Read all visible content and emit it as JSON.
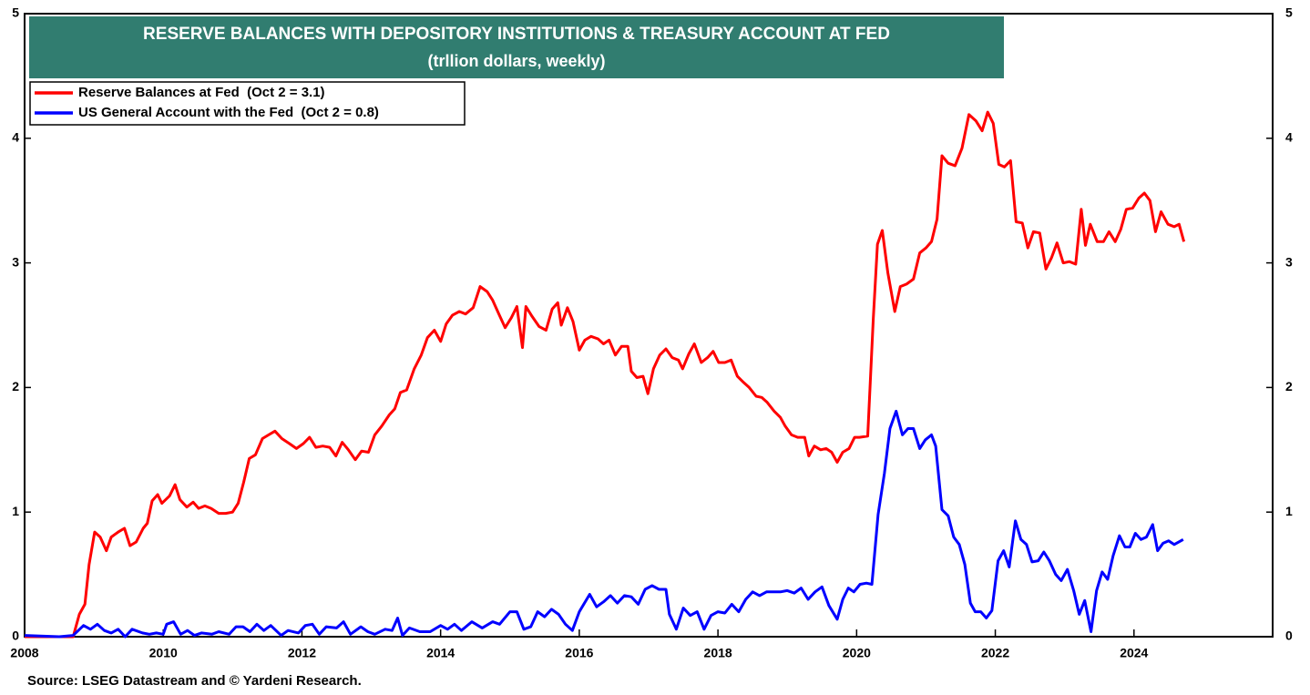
{
  "chart_data": {
    "type": "line",
    "title": "RESERVE BALANCES WITH DEPOSITORY INSTITUTIONS & TREASURY ACCOUNT AT FED",
    "subtitle": "(trllion dollars, weekly)",
    "source": "Source: LSEG Datastream and © Yardeni Research.",
    "xlim": [
      2008,
      2026
    ],
    "xticks": [
      2008,
      2010,
      2012,
      2014,
      2016,
      2018,
      2020,
      2022,
      2024
    ],
    "ylim": [
      0,
      5
    ],
    "yticks": [
      0,
      1,
      2,
      3,
      4,
      5
    ],
    "legend": "upper left",
    "series": [
      {
        "name": "Reserve Balances at Fed  (Oct 2 = 3.1)",
        "color": "#ff0000",
        "x": [
          2008.0,
          2008.7,
          2008.79,
          2008.87,
          2008.93,
          2009.01,
          2009.09,
          2009.18,
          2009.25,
          2009.35,
          2009.44,
          2009.52,
          2009.61,
          2009.71,
          2009.77,
          2009.84,
          2009.92,
          2009.98,
          2010.09,
          2010.17,
          2010.24,
          2010.34,
          2010.43,
          2010.51,
          2010.6,
          2010.69,
          2010.8,
          2010.9,
          2011.0,
          2011.08,
          2011.16,
          2011.24,
          2011.33,
          2011.43,
          2011.52,
          2011.61,
          2011.71,
          2011.82,
          2011.92,
          2012.02,
          2012.11,
          2012.2,
          2012.3,
          2012.4,
          2012.49,
          2012.58,
          2012.67,
          2012.77,
          2012.86,
          2012.96,
          2013.05,
          2013.15,
          2013.26,
          2013.34,
          2013.42,
          2013.51,
          2013.62,
          2013.72,
          2013.81,
          2013.91,
          2014.0,
          2014.08,
          2014.17,
          2014.27,
          2014.36,
          2014.47,
          2014.57,
          2014.67,
          2014.75,
          2014.84,
          2014.93,
          2015.02,
          2015.1,
          2015.18,
          2015.23,
          2015.32,
          2015.42,
          2015.52,
          2015.61,
          2015.69,
          2015.74,
          2015.83,
          2015.91,
          2016.0,
          2016.08,
          2016.17,
          2016.27,
          2016.35,
          2016.43,
          2016.52,
          2016.61,
          2016.7,
          2016.75,
          2016.83,
          2016.92,
          2016.99,
          2017.07,
          2017.16,
          2017.25,
          2017.34,
          2017.43,
          2017.49,
          2017.58,
          2017.66,
          2017.76,
          2017.85,
          2017.93,
          2018.01,
          2018.1,
          2018.19,
          2018.28,
          2018.37,
          2018.45,
          2018.55,
          2018.63,
          2018.71,
          2018.81,
          2018.9,
          2018.97,
          2019.06,
          2019.15,
          2019.25,
          2019.31,
          2019.39,
          2019.48,
          2019.56,
          2019.64,
          2019.72,
          2019.8,
          2019.89,
          2019.97,
          2020.04,
          2020.16,
          2020.24,
          2020.3,
          2020.37,
          2020.45,
          2020.55,
          2020.63,
          2020.72,
          2020.82,
          2020.91,
          2021.0,
          2021.08,
          2021.16,
          2021.23,
          2021.32,
          2021.42,
          2021.52,
          2021.62,
          2021.72,
          2021.81,
          2021.89,
          2021.97,
          2022.05,
          2022.13,
          2022.22,
          2022.3,
          2022.39,
          2022.47,
          2022.55,
          2022.64,
          2022.73,
          2022.81,
          2022.89,
          2022.98,
          2023.07,
          2023.16,
          2023.24,
          2023.3,
          2023.37,
          2023.47,
          2023.56,
          2023.64,
          2023.73,
          2023.81,
          2023.89,
          2023.98,
          2024.07,
          2024.15,
          2024.23,
          2024.31,
          2024.39,
          2024.49,
          2024.58,
          2024.65,
          2024.72
        ],
        "values": [
          0,
          0,
          0.18,
          0.26,
          0.58,
          0.84,
          0.8,
          0.69,
          0.8,
          0.84,
          0.87,
          0.73,
          0.76,
          0.87,
          0.91,
          1.09,
          1.14,
          1.07,
          1.13,
          1.22,
          1.1,
          1.04,
          1.08,
          1.03,
          1.05,
          1.03,
          0.99,
          0.99,
          1,
          1.07,
          1.24,
          1.43,
          1.46,
          1.59,
          1.62,
          1.65,
          1.59,
          1.55,
          1.51,
          1.55,
          1.6,
          1.52,
          1.53,
          1.52,
          1.45,
          1.56,
          1.5,
          1.42,
          1.49,
          1.48,
          1.62,
          1.69,
          1.78,
          1.83,
          1.96,
          1.98,
          2.15,
          2.26,
          2.4,
          2.46,
          2.37,
          2.51,
          2.58,
          2.61,
          2.59,
          2.64,
          2.81,
          2.77,
          2.7,
          2.59,
          2.48,
          2.56,
          2.65,
          2.32,
          2.65,
          2.57,
          2.49,
          2.46,
          2.63,
          2.68,
          2.5,
          2.64,
          2.53,
          2.3,
          2.38,
          2.41,
          2.39,
          2.35,
          2.38,
          2.26,
          2.33,
          2.33,
          2.13,
          2.08,
          2.09,
          1.95,
          2.15,
          2.26,
          2.31,
          2.24,
          2.22,
          2.15,
          2.27,
          2.35,
          2.2,
          2.24,
          2.29,
          2.2,
          2.2,
          2.22,
          2.09,
          2.04,
          2,
          1.93,
          1.92,
          1.88,
          1.81,
          1.76,
          1.69,
          1.62,
          1.6,
          1.6,
          1.45,
          1.53,
          1.5,
          1.51,
          1.48,
          1.4,
          1.48,
          1.51,
          1.6,
          1.6,
          1.61,
          2.55,
          3.15,
          3.26,
          2.92,
          2.61,
          2.81,
          2.83,
          2.87,
          3.08,
          3.12,
          3.17,
          3.35,
          3.86,
          3.8,
          3.78,
          3.92,
          4.19,
          4.14,
          4.06,
          4.21,
          4.12,
          3.79,
          3.77,
          3.82,
          3.33,
          3.32,
          3.12,
          3.25,
          3.24,
          2.95,
          3.04,
          3.16,
          3,
          3.01,
          2.99,
          3.43,
          3.14,
          3.31,
          3.17,
          3.17,
          3.25,
          3.17,
          3.27,
          3.43,
          3.44,
          3.52,
          3.56,
          3.5,
          3.25,
          3.41,
          3.31,
          3.29,
          3.31,
          3.17
        ]
      },
      {
        "name": "US General Account with the Fed  (Oct 2 = 0.8)",
        "color": "#0000ff",
        "x": [
          2008.0,
          2008.5,
          2008.7,
          2008.85,
          2008.95,
          2009.05,
          2009.15,
          2009.25,
          2009.35,
          2009.45,
          2009.55,
          2009.7,
          2009.8,
          2009.9,
          2010.0,
          2010.05,
          2010.15,
          2010.25,
          2010.35,
          2010.45,
          2010.55,
          2010.7,
          2010.8,
          2010.95,
          2011.05,
          2011.15,
          2011.25,
          2011.35,
          2011.45,
          2011.55,
          2011.7,
          2011.8,
          2011.95,
          2012.05,
          2012.15,
          2012.25,
          2012.35,
          2012.5,
          2012.6,
          2012.7,
          2012.85,
          2012.95,
          2013.05,
          2013.2,
          2013.3,
          2013.38,
          2013.45,
          2013.55,
          2013.7,
          2013.85,
          2014.0,
          2014.1,
          2014.2,
          2014.3,
          2014.45,
          2014.6,
          2014.75,
          2014.85,
          2015.0,
          2015.1,
          2015.2,
          2015.3,
          2015.4,
          2015.5,
          2015.6,
          2015.7,
          2015.8,
          2015.9,
          2016.0,
          2016.15,
          2016.25,
          2016.35,
          2016.45,
          2016.55,
          2016.65,
          2016.75,
          2016.85,
          2016.95,
          2017.05,
          2017.15,
          2017.25,
          2017.3,
          2017.4,
          2017.5,
          2017.6,
          2017.7,
          2017.8,
          2017.9,
          2018.0,
          2018.1,
          2018.2,
          2018.3,
          2018.4,
          2018.5,
          2018.6,
          2018.7,
          2018.8,
          2018.9,
          2019.0,
          2019.1,
          2019.2,
          2019.3,
          2019.4,
          2019.5,
          2019.6,
          2019.72,
          2019.8,
          2019.88,
          2019.96,
          2020.05,
          2020.14,
          2020.22,
          2020.31,
          2020.4,
          2020.48,
          2020.57,
          2020.66,
          2020.74,
          2020.82,
          2020.91,
          2020.99,
          2021.08,
          2021.14,
          2021.23,
          2021.32,
          2021.4,
          2021.48,
          2021.56,
          2021.64,
          2021.71,
          2021.79,
          2021.87,
          2021.95,
          2022.04,
          2022.12,
          2022.2,
          2022.29,
          2022.37,
          2022.45,
          2022.53,
          2022.62,
          2022.7,
          2022.78,
          2022.87,
          2022.95,
          2023.04,
          2023.13,
          2023.21,
          2023.29,
          2023.38,
          2023.46,
          2023.54,
          2023.62,
          2023.7,
          2023.79,
          2023.87,
          2023.94,
          2024.02,
          2024.1,
          2024.18,
          2024.27,
          2024.34,
          2024.42,
          2024.5,
          2024.58,
          2024.71
        ],
        "values": [
          0.01,
          0,
          0.01,
          0.09,
          0.06,
          0.1,
          0.05,
          0.03,
          0.06,
          0,
          0.06,
          0.03,
          0.02,
          0.03,
          0.02,
          0.1,
          0.12,
          0.02,
          0.05,
          0.01,
          0.03,
          0.02,
          0.04,
          0.02,
          0.08,
          0.08,
          0.04,
          0.1,
          0.05,
          0.09,
          0.01,
          0.05,
          0.03,
          0.09,
          0.1,
          0.02,
          0.08,
          0.07,
          0.12,
          0.02,
          0.08,
          0.04,
          0.02,
          0.06,
          0.05,
          0.15,
          0.01,
          0.07,
          0.04,
          0.04,
          0.09,
          0.06,
          0.1,
          0.05,
          0.12,
          0.07,
          0.12,
          0.1,
          0.2,
          0.2,
          0.06,
          0.08,
          0.2,
          0.16,
          0.22,
          0.18,
          0.1,
          0.05,
          0.2,
          0.34,
          0.24,
          0.28,
          0.33,
          0.27,
          0.33,
          0.32,
          0.26,
          0.38,
          0.41,
          0.38,
          0.38,
          0.18,
          0.06,
          0.23,
          0.17,
          0.2,
          0.06,
          0.17,
          0.2,
          0.19,
          0.26,
          0.2,
          0.3,
          0.36,
          0.33,
          0.36,
          0.36,
          0.36,
          0.37,
          0.35,
          0.39,
          0.3,
          0.36,
          0.4,
          0.25,
          0.14,
          0.3,
          0.39,
          0.36,
          0.42,
          0.43,
          0.42,
          0.98,
          1.31,
          1.67,
          1.81,
          1.62,
          1.67,
          1.67,
          1.51,
          1.58,
          1.62,
          1.53,
          1.02,
          0.97,
          0.8,
          0.74,
          0.58,
          0.27,
          0.2,
          0.2,
          0.15,
          0.21,
          0.61,
          0.69,
          0.56,
          0.93,
          0.78,
          0.74,
          0.6,
          0.61,
          0.68,
          0.61,
          0.5,
          0.45,
          0.54,
          0.37,
          0.18,
          0.29,
          0.04,
          0.37,
          0.52,
          0.46,
          0.65,
          0.81,
          0.72,
          0.72,
          0.83,
          0.78,
          0.8,
          0.9,
          0.69,
          0.75,
          0.77,
          0.74,
          0.78
        ]
      }
    ]
  }
}
